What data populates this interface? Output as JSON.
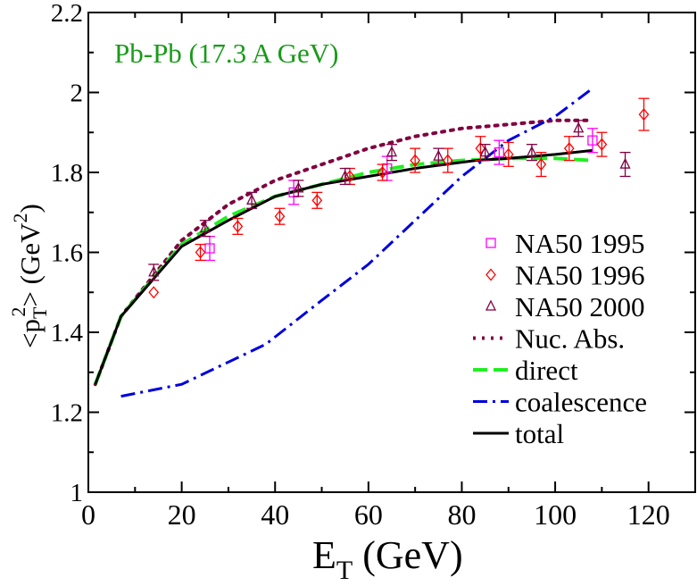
{
  "chart_data": {
    "type": "line",
    "annotation": "Pb-Pb (17.3 A GeV)",
    "xlabel_main": "E",
    "xlabel_sub": "T",
    "xlabel_unit": " (GeV)",
    "ylabel": "<p_T^2> (GeV^2)",
    "ylabel_parts": {
      "open": "<p",
      "sub": "T",
      "sup": "2",
      "close": ">",
      "unit_open": " (GeV",
      "unit_sup": "2",
      "unit_close": ")"
    },
    "xlim": [
      0,
      130
    ],
    "ylim": [
      1.0,
      2.2
    ],
    "xticks": [
      0,
      20,
      40,
      60,
      80,
      100,
      120
    ],
    "xtick_labels": [
      "0",
      "20",
      "40",
      "60",
      "80",
      "100",
      "120"
    ],
    "yticks": [
      1.0,
      1.2,
      1.4,
      1.6,
      1.8,
      2.0,
      2.2
    ],
    "ytick_labels": [
      "1",
      "1.2",
      "1.4",
      "1.6",
      "1.8",
      "2",
      "2.2"
    ],
    "legend_position": "right",
    "series": [
      {
        "name": "NA50 1995",
        "kind": "points",
        "marker": "square",
        "color": "#ff00ff",
        "points": [
          {
            "x": 26,
            "y": 1.61,
            "err": 0.03
          },
          {
            "x": 44,
            "y": 1.75,
            "err": 0.03
          },
          {
            "x": 64,
            "y": 1.81,
            "err": 0.03
          },
          {
            "x": 88,
            "y": 1.85,
            "err": 0.03
          },
          {
            "x": 108,
            "y": 1.88,
            "err": 0.03
          }
        ]
      },
      {
        "name": "NA50 1996",
        "kind": "points",
        "marker": "diamond",
        "color": "#ff0000",
        "points": [
          {
            "x": 14,
            "y": 1.5,
            "err": 0.0
          },
          {
            "x": 24,
            "y": 1.6,
            "err": 0.02
          },
          {
            "x": 32,
            "y": 1.665,
            "err": 0.02
          },
          {
            "x": 41,
            "y": 1.69,
            "err": 0.02
          },
          {
            "x": 49,
            "y": 1.73,
            "err": 0.02
          },
          {
            "x": 56,
            "y": 1.79,
            "err": 0.02
          },
          {
            "x": 63,
            "y": 1.8,
            "err": 0.02
          },
          {
            "x": 70,
            "y": 1.83,
            "err": 0.03
          },
          {
            "x": 77,
            "y": 1.83,
            "err": 0.03
          },
          {
            "x": 84,
            "y": 1.86,
            "err": 0.03
          },
          {
            "x": 90,
            "y": 1.845,
            "err": 0.03
          },
          {
            "x": 97,
            "y": 1.82,
            "err": 0.03
          },
          {
            "x": 103,
            "y": 1.86,
            "err": 0.03
          },
          {
            "x": 110,
            "y": 1.87,
            "err": 0.03
          },
          {
            "x": 119,
            "y": 1.945,
            "err": 0.04
          }
        ]
      },
      {
        "name": "NA50 2000",
        "kind": "points",
        "marker": "triangle",
        "color": "#800040",
        "points": [
          {
            "x": 14,
            "y": 1.55,
            "err": 0.02
          },
          {
            "x": 25,
            "y": 1.66,
            "err": 0.02
          },
          {
            "x": 35,
            "y": 1.73,
            "err": 0.02
          },
          {
            "x": 45,
            "y": 1.76,
            "err": 0.02
          },
          {
            "x": 55,
            "y": 1.79,
            "err": 0.02
          },
          {
            "x": 65,
            "y": 1.85,
            "err": 0.02
          },
          {
            "x": 75,
            "y": 1.84,
            "err": 0.02
          },
          {
            "x": 85,
            "y": 1.85,
            "err": 0.02
          },
          {
            "x": 95,
            "y": 1.85,
            "err": 0.02
          },
          {
            "x": 105,
            "y": 1.91,
            "err": 0.02
          },
          {
            "x": 115,
            "y": 1.82,
            "err": 0.03
          }
        ]
      },
      {
        "name": "Nuc. Abs.",
        "kind": "line",
        "style": "dotted",
        "color": "#800040",
        "x": [
          1.5,
          7,
          20,
          30,
          40,
          50,
          60,
          70,
          80,
          90,
          100,
          108
        ],
        "y": [
          1.27,
          1.44,
          1.63,
          1.72,
          1.78,
          1.82,
          1.86,
          1.89,
          1.91,
          1.92,
          1.93,
          1.93
        ]
      },
      {
        "name": "direct",
        "kind": "line",
        "style": "dashed",
        "color": "#22ee22",
        "x": [
          1.5,
          7,
          20,
          30,
          40,
          50,
          60,
          70,
          80,
          90,
          100,
          108
        ],
        "y": [
          1.27,
          1.44,
          1.62,
          1.69,
          1.74,
          1.77,
          1.8,
          1.82,
          1.83,
          1.835,
          1.835,
          1.83
        ]
      },
      {
        "name": "coalescence",
        "kind": "line",
        "style": "dashdot",
        "color": "#0000dd",
        "x": [
          7,
          20,
          38,
          50,
          60,
          70,
          80,
          90,
          100,
          108
        ],
        "y": [
          1.24,
          1.27,
          1.37,
          1.48,
          1.57,
          1.68,
          1.79,
          1.88,
          1.94,
          2.01
        ]
      },
      {
        "name": "total",
        "kind": "line",
        "style": "solid",
        "color": "#000000",
        "x": [
          1.5,
          7,
          20,
          30,
          40,
          50,
          60,
          70,
          83,
          90,
          100,
          108
        ],
        "y": [
          1.27,
          1.44,
          1.615,
          1.68,
          1.74,
          1.77,
          1.79,
          1.81,
          1.83,
          1.835,
          1.845,
          1.855
        ]
      }
    ]
  }
}
